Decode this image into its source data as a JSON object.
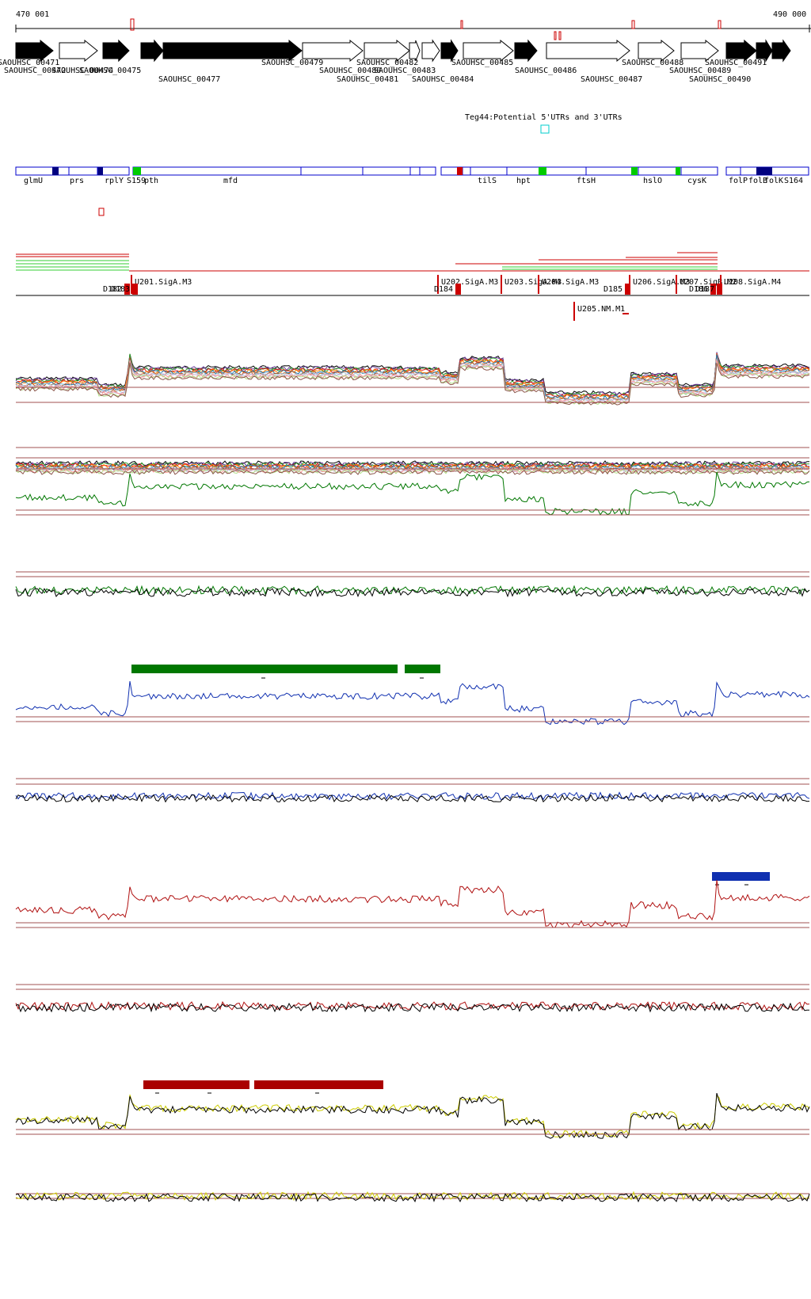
{
  "coords": {
    "start": "470 001",
    "end": "490 000"
  },
  "genes_top": [
    {
      "label": "SAOUHSC_00471",
      "strand": "+",
      "filled": true
    },
    {
      "label": "SAOUHSC_00472",
      "strand": "+",
      "filled": false
    },
    {
      "label": "SAOUHSC_00474",
      "strand": "+",
      "filled": true
    },
    {
      "label": "SAOUHSC_00475",
      "strand": "+",
      "filled": true
    },
    {
      "label": "SAOUHSC_00477",
      "strand": "+",
      "filled": true
    },
    {
      "label": "SAOUHSC_00479",
      "strand": "+",
      "filled": false
    },
    {
      "label": "SAOUHSC_00480",
      "strand": "+",
      "filled": false
    },
    {
      "label": "SAOUHSC_00481",
      "strand": "+",
      "filled": false
    },
    {
      "label": "SAOUHSC_00482",
      "strand": "+",
      "filled": false
    },
    {
      "label": "SAOUHSC_00483",
      "strand": "+",
      "filled": true
    },
    {
      "label": "SAOUHSC_00484",
      "strand": "+",
      "filled": false
    },
    {
      "label": "SAOUHSC_00485",
      "strand": "+",
      "filled": true
    },
    {
      "label": "SAOUHSC_00486",
      "strand": "+",
      "filled": false
    },
    {
      "label": "SAOUHSC_00487",
      "strand": "+",
      "filled": false
    },
    {
      "label": "SAOUHSC_00488",
      "strand": "+",
      "filled": false
    },
    {
      "label": "SAOUHSC_00489",
      "strand": "+",
      "filled": true
    },
    {
      "label": "SAOUHSC_00490",
      "strand": "+",
      "filled": true
    },
    {
      "label": "SAOUHSC_00491",
      "strand": "+",
      "filled": true
    }
  ],
  "utr_track_title": "Teg44:Potential 5'UTRs and 3'UTRs",
  "gene_names": [
    "glmU",
    "prs",
    "rplY",
    "S159",
    "pth",
    "mfd",
    "tilS",
    "hpt",
    "ftsH",
    "hslO",
    "cysK",
    "folP",
    "folB",
    "folK",
    "S164"
  ],
  "promoters": [
    {
      "label": "U201.SigA.M3"
    },
    {
      "label": "U202.SigA.M3"
    },
    {
      "label": "U203.SigA.M3"
    },
    {
      "label": "U204.SigA.M3"
    },
    {
      "label": "U206.SigA.M3"
    },
    {
      "label": "U207.SigB.M2"
    },
    {
      "label": "U208.SigA.M4"
    },
    {
      "label": "U205.NM.M1"
    }
  ],
  "terminators": [
    "D182",
    "D183",
    "D184",
    "D185",
    "D186",
    "D187"
  ],
  "colors": {
    "gene_black": "#000000",
    "feature_blue": "#0000cc",
    "dark_blue": "#000080",
    "green_box": "#00cc00",
    "red": "#cc0000",
    "dark_red": "#aa0000",
    "green_trace": "#007700",
    "blue_trace": "#1030b0",
    "red_trace": "#b01010",
    "yellow_trace": "#cccc00",
    "track_guide": "#a05050",
    "cyan_box": "#00cccc"
  },
  "segment_bars": {
    "green": "green-segments",
    "blue": "blue-segment",
    "red": "red-segments"
  }
}
